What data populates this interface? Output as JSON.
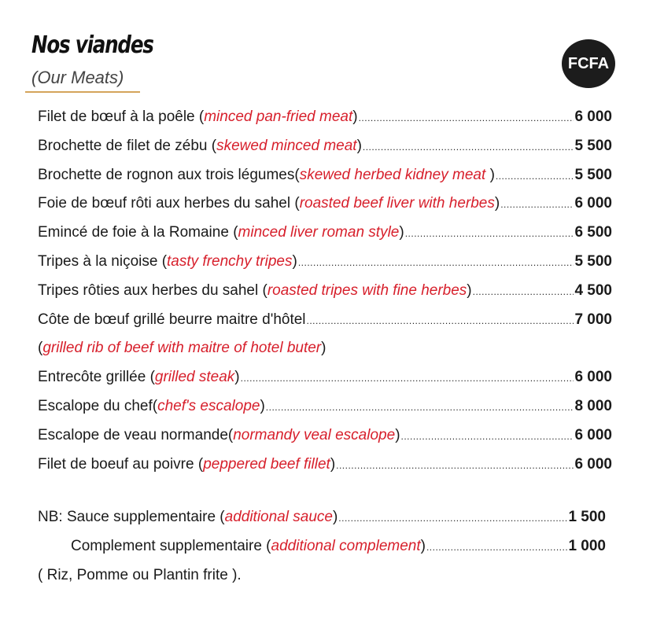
{
  "header": {
    "title": "Nos viandes",
    "subtitle": "(Our Meats)",
    "currency_badge": "FCFA",
    "accent_color": "#d4a45a",
    "translation_color": "#d71f2b"
  },
  "items": [
    {
      "name": "Filet de bœuf à la poêle (",
      "translation": "minced pan-fried meat",
      "close": ")",
      "price": "6 000"
    },
    {
      "name": "Brochette de filet de zébu (",
      "translation": "skewed minced meat",
      "close": ")",
      "price": "5 500"
    },
    {
      "name": "Brochette de rognon aux trois légumes(",
      "translation": "skewed herbed kidney meat ",
      "close": ")",
      "price": "5 500"
    },
    {
      "name": "Foie de bœuf rôti aux herbes du sahel (",
      "translation": "roasted beef liver with herbes",
      "close": ")",
      "price": "6 000"
    },
    {
      "name": "Emincé de foie à la Romaine (",
      "translation": "minced liver roman style",
      "close": ")",
      "price": "6 500"
    },
    {
      "name": "Tripes à la niçoise (",
      "translation": "tasty frenchy tripes",
      "close": ")",
      "price": "5 500"
    },
    {
      "name": "Tripes rôties aux herbes du sahel (",
      "translation": "roasted tripes with fine herbes",
      "close": ")",
      "price": "4 500"
    },
    {
      "name": "Côte de bœuf grillé beurre maitre d'hôtel ",
      "translation": "",
      "close": "",
      "price": "7 000"
    },
    {
      "name": "(",
      "translation": "grilled rib of beef with maitre of hotel buter",
      "close": ")",
      "price": ""
    },
    {
      "name": "Entrecôte grillée (",
      "translation": "grilled steak",
      "close": ")",
      "price": "6 000"
    },
    {
      "name": "Escalope du chef(",
      "translation": "chef's escalope",
      "close": ")",
      "price": "8 000"
    },
    {
      "name": "Escalope de veau normande(",
      "translation": "normandy veal escalope",
      "close": ")",
      "price": "6 000"
    },
    {
      "name": "Filet de boeuf au poivre (",
      "translation": "peppered beef fillet",
      "close": ")",
      "price": "6 000"
    }
  ],
  "notes": [
    {
      "name": "NB: Sauce supplementaire (",
      "translation": "additional sauce",
      "close": ")",
      "price": "1 500"
    },
    {
      "name": "Complement supplementaire (",
      "translation": "additional complement",
      "close": ")",
      "price": "1 000"
    },
    {
      "name": "( Riz, Pomme ou Plantin frite ).",
      "translation": "",
      "close": "",
      "price": ""
    }
  ]
}
